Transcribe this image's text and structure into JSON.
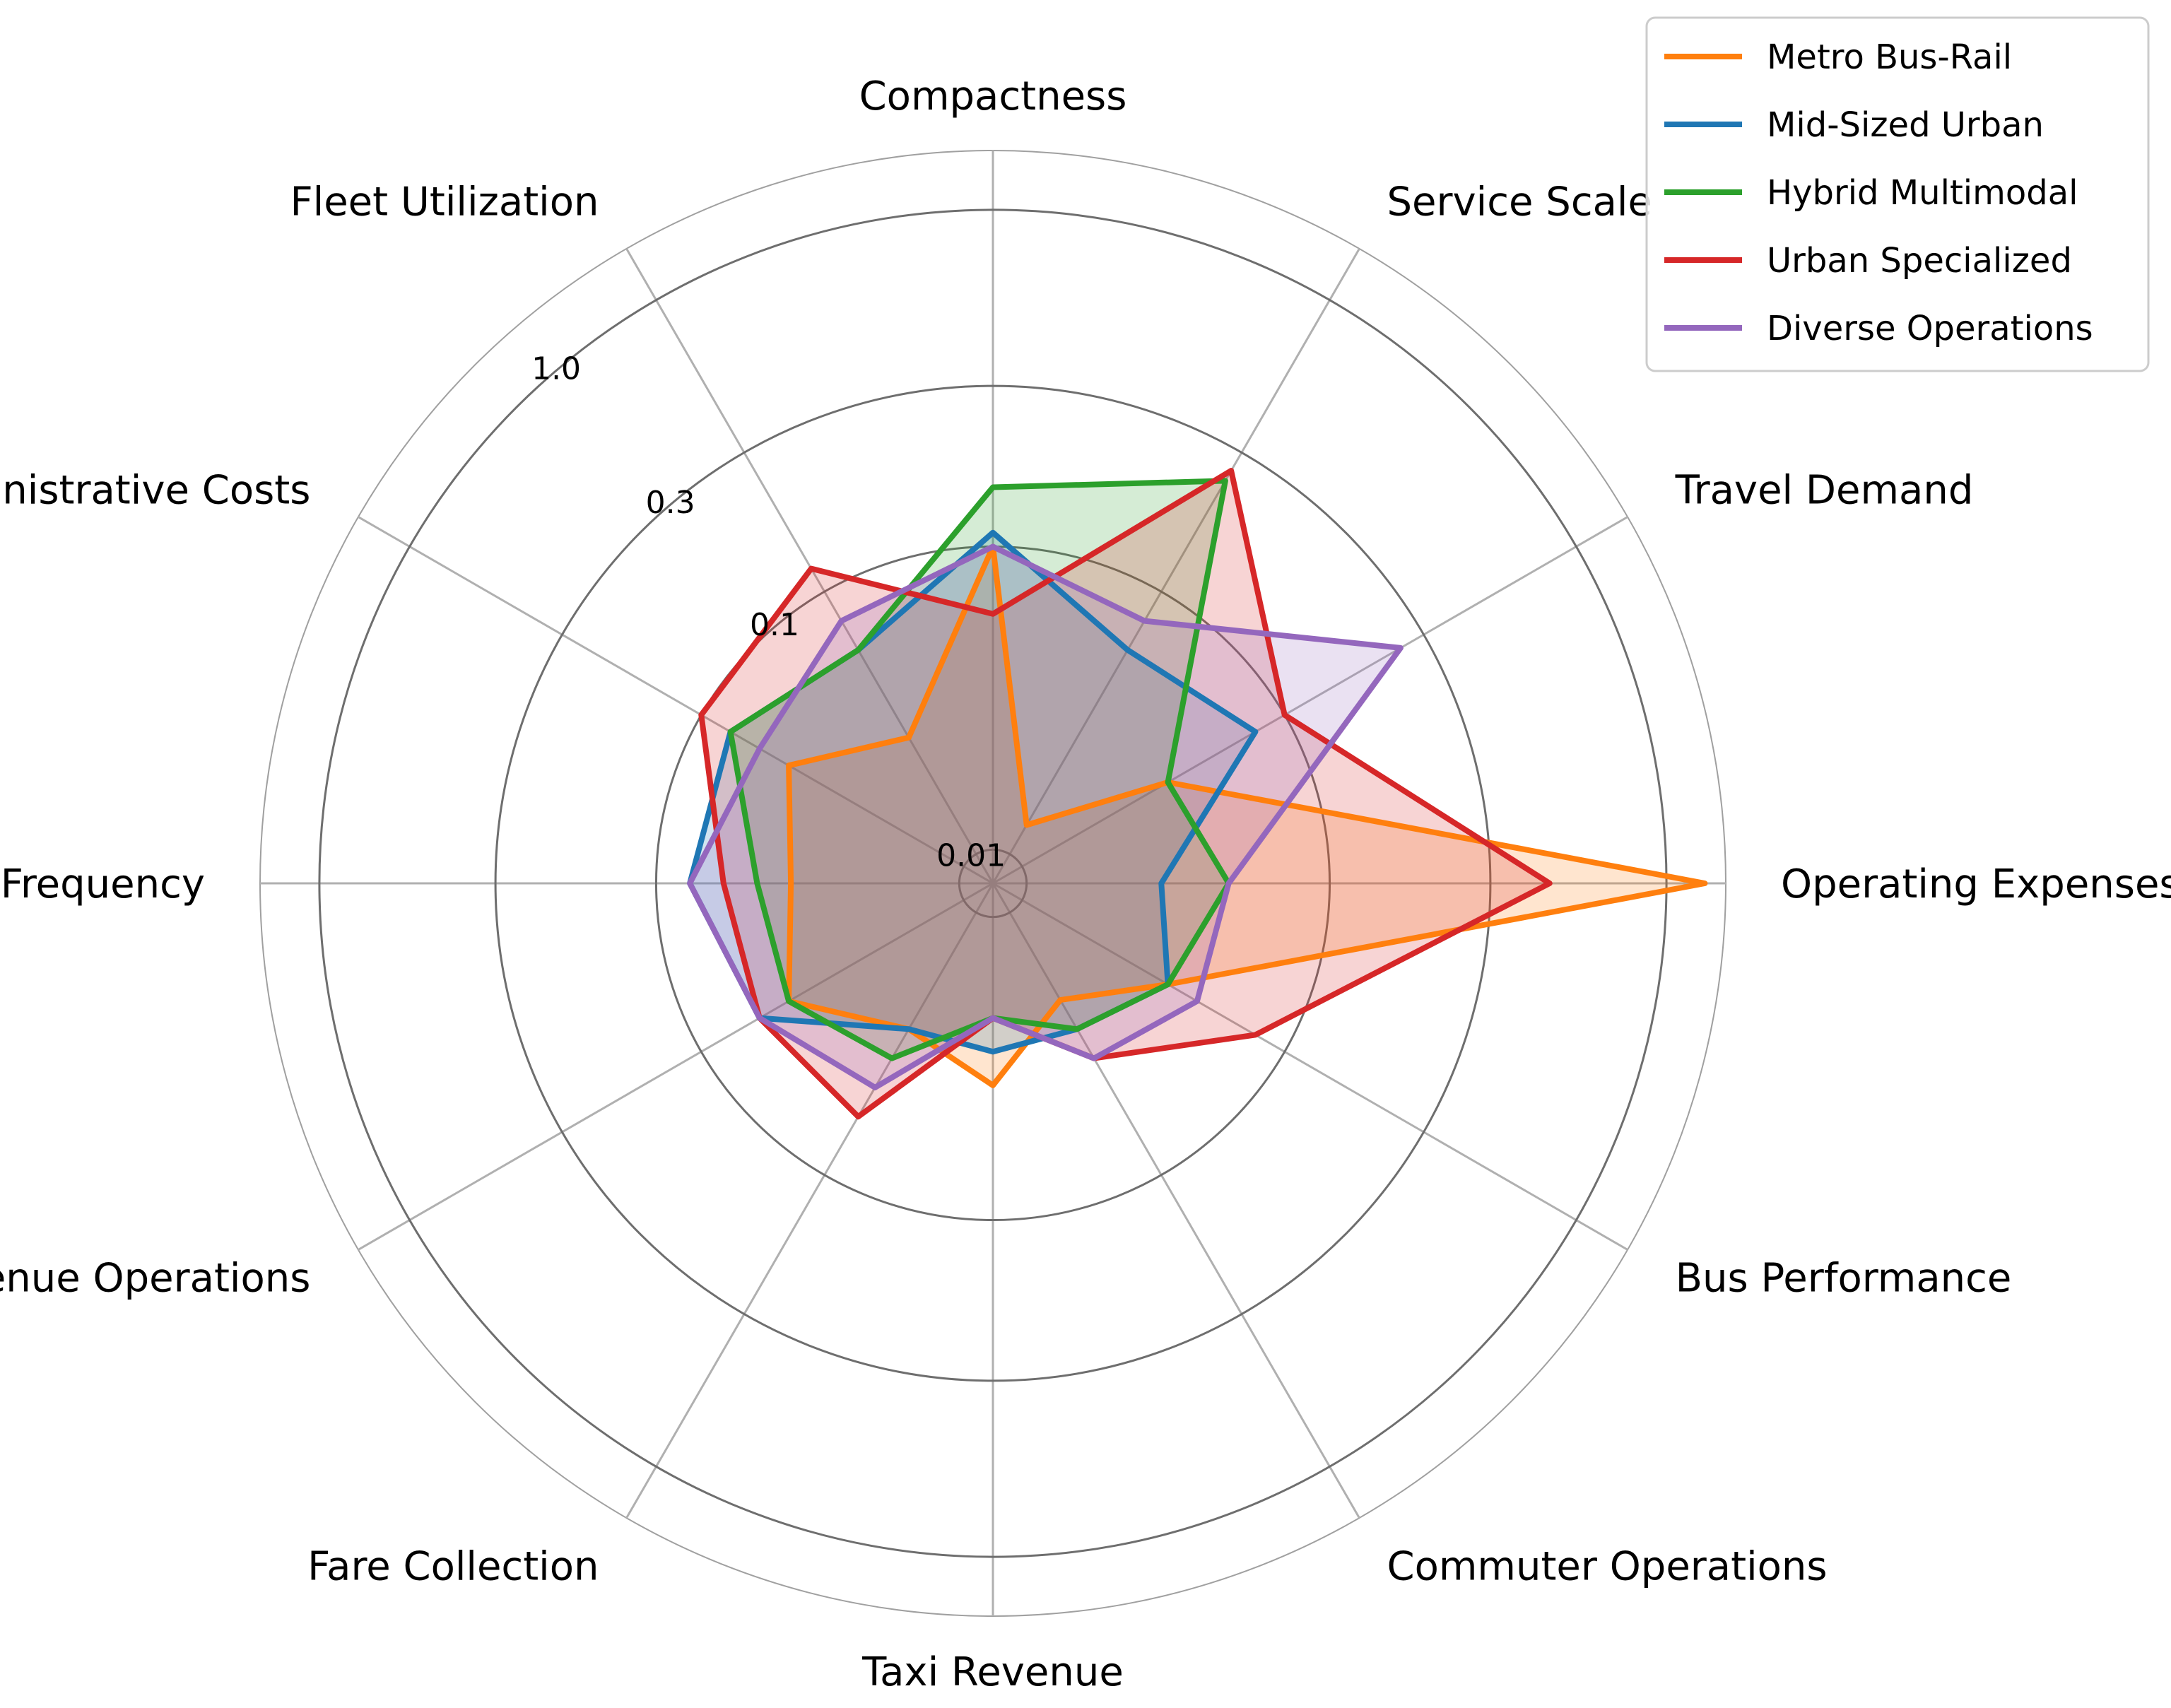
{
  "chart_data": {
    "type": "radar",
    "axes": [
      "Compactness",
      "Service Scale",
      "Travel Demand",
      "Operating Expenses",
      "Bus Performance",
      "Commuter Operations",
      "Taxi Revenue",
      "Fare Collection",
      "Revenue Operations",
      "Service Frequency",
      "Administrative Costs",
      "Fleet Utilization"
    ],
    "radial_scale": "symlog",
    "radial_ticks": [
      {
        "label": "0.01",
        "value": 0.01
      },
      {
        "label": "0.1",
        "value": 0.1
      },
      {
        "label": "0.3",
        "value": 0.3
      },
      {
        "label": "1.0",
        "value": 1.0
      }
    ],
    "grid": true,
    "legend": {
      "placement": "top-right"
    },
    "series": [
      {
        "name": "Metro Bus-Rail",
        "color": "#ff7f0e",
        "values": [
          0.1,
          0.02,
          0.06,
          1.3,
          0.06,
          0.04,
          0.06,
          0.05,
          0.07,
          0.06,
          0.07,
          0.05
        ]
      },
      {
        "name": "Mid-Sized Urban",
        "color": "#1f77b4",
        "values": [
          0.11,
          0.08,
          0.09,
          0.05,
          0.06,
          0.05,
          0.05,
          0.05,
          0.08,
          0.09,
          0.09,
          0.08
        ]
      },
      {
        "name": "Hybrid Multimodal",
        "color": "#2ca02c",
        "values": [
          0.15,
          0.24,
          0.06,
          0.07,
          0.06,
          0.05,
          0.04,
          0.06,
          0.07,
          0.07,
          0.09,
          0.08
        ]
      },
      {
        "name": "Urban Specialized",
        "color": "#d62728",
        "values": [
          0.08,
          0.26,
          0.1,
          0.45,
          0.09,
          0.06,
          0.04,
          0.08,
          0.08,
          0.08,
          0.1,
          0.12
        ]
      },
      {
        "name": "Diverse Operations",
        "color": "#9467bd",
        "values": [
          0.1,
          0.09,
          0.25,
          0.07,
          0.07,
          0.06,
          0.04,
          0.07,
          0.08,
          0.09,
          0.08,
          0.09
        ]
      }
    ]
  }
}
